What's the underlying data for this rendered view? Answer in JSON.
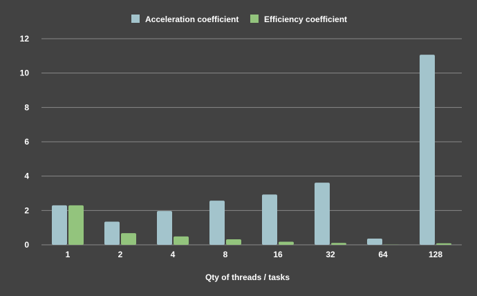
{
  "chart_data": {
    "type": "bar",
    "title": "",
    "xlabel": "Qty of threads / tasks",
    "ylabel": "",
    "categories": [
      "1",
      "2",
      "4",
      "8",
      "16",
      "32",
      "64",
      "128"
    ],
    "series": [
      {
        "name": "Acceleration coefficient",
        "color": "#a3c4cc",
        "values": [
          2.3,
          1.35,
          1.97,
          2.57,
          2.93,
          3.62,
          0.36,
          11.07
        ]
      },
      {
        "name": "Efficiency coefficient",
        "color": "#93c47d",
        "values": [
          2.3,
          0.68,
          0.49,
          0.32,
          0.18,
          0.11,
          0.01,
          0.09
        ]
      }
    ],
    "ylim": [
      0,
      12
    ],
    "yticks": [
      0,
      2,
      4,
      6,
      8,
      10,
      12
    ],
    "grid": true,
    "legend_position": "top"
  },
  "colors": {
    "background": "#424242",
    "gridline": "#8a8a8a",
    "text": "#ffffff"
  }
}
